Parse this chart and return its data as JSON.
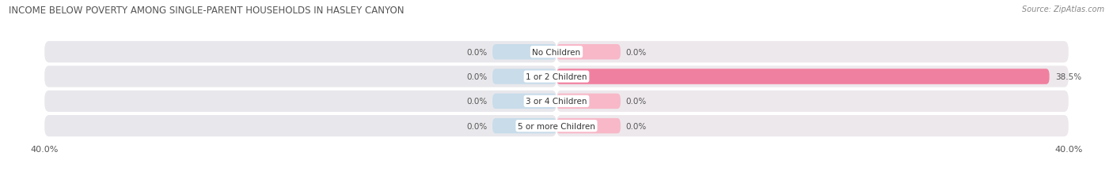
{
  "title": "INCOME BELOW POVERTY AMONG SINGLE-PARENT HOUSEHOLDS IN HASLEY CANYON",
  "source": "Source: ZipAtlas.com",
  "categories": [
    "No Children",
    "1 or 2 Children",
    "3 or 4 Children",
    "5 or more Children"
  ],
  "single_father": [
    0.0,
    0.0,
    0.0,
    0.0
  ],
  "single_mother": [
    0.0,
    38.5,
    0.0,
    0.0
  ],
  "father_color": "#a8c4dc",
  "mother_color": "#f080a0",
  "father_color_light": "#c8dcea",
  "mother_color_light": "#f8b8c8",
  "bar_bg_color_left": "#e8e8ec",
  "bar_bg_color_right": "#ede8ec",
  "axis_limit": 40.0,
  "bar_height": 0.62,
  "figsize": [
    14.06,
    2.32
  ],
  "dpi": 100,
  "title_fontsize": 8.5,
  "label_fontsize": 7.5,
  "category_fontsize": 7.5,
  "legend_fontsize": 7.5,
  "source_fontsize": 7.0,
  "tick_fontsize": 8.0,
  "default_bar_width": 5.0
}
